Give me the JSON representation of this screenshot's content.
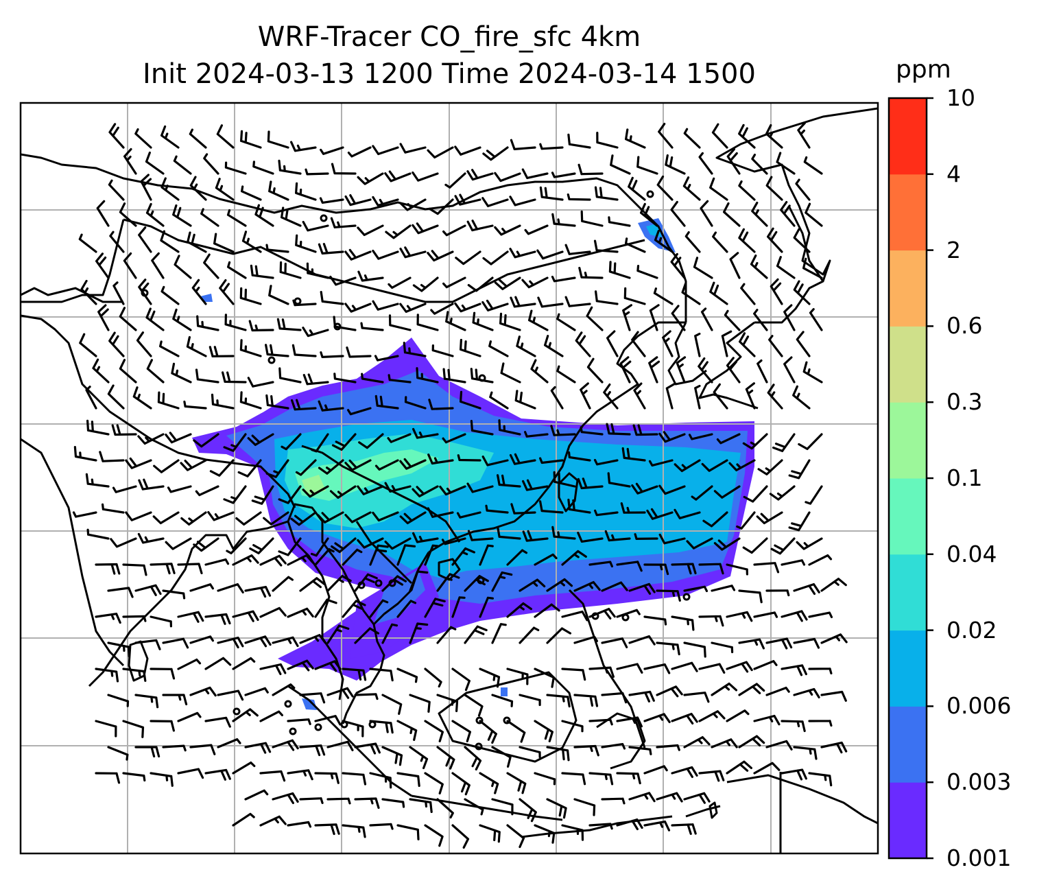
{
  "title": {
    "line1": "WRF-Tracer CO_fire_sfc 4km",
    "line2": "Init 2024-03-13 1200 Time 2024-03-14 1500"
  },
  "colorbar": {
    "unit": "ppm",
    "labels": [
      "0.001",
      "0.003",
      "0.006",
      "0.02",
      "0.04",
      "0.1",
      "0.3",
      "0.6",
      "2",
      "4",
      "10"
    ],
    "colors": [
      "#6a2bff",
      "#3b72f2",
      "#08b0ea",
      "#30ddd6",
      "#66f7bc",
      "#9cf79a",
      "#cfe08a",
      "#fcb15e",
      "#ff7037",
      "#ff2e18"
    ]
  },
  "map": {
    "gridline_color": "#b0b0b0",
    "coastline_color": "#000000",
    "field": "CO_fire_sfc",
    "wind_symbol": "wind-barb"
  }
}
